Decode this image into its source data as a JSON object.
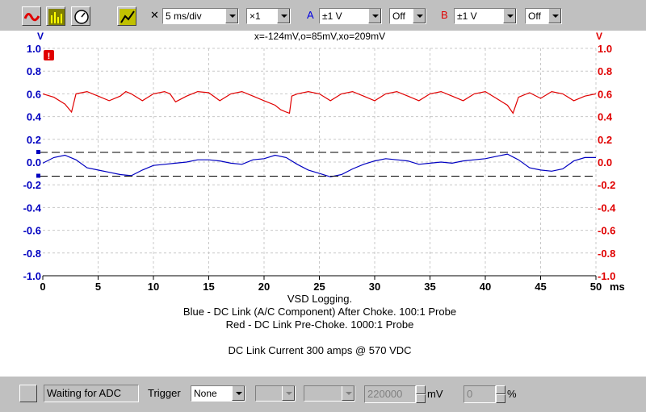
{
  "toolbar": {
    "timebase": "5 ms/div",
    "multiplier": "×1",
    "channel_a_label": "A",
    "channel_a_range": "±1 V",
    "channel_a_coupling": "Off",
    "channel_b_label": "B",
    "channel_b_range": "±1 V",
    "channel_b_coupling": "Off",
    "icons": [
      "scope-icon",
      "spectrum-icon",
      "meter-icon",
      "signal-generator-icon",
      "close-icon"
    ]
  },
  "plot": {
    "left_unit": "V",
    "right_unit": "V",
    "x_unit": "ms",
    "readout": "x=-124mV,o=85mV,xo=209mV",
    "warning_icon": "warning-icon",
    "caption_lines": [
      "VSD Logging.",
      "Blue - DC Link (A/C Component) After Choke. 100:1 Probe",
      "Red - DC Link Pre-Choke. 1000:1 Probe",
      "",
      "DC Link Current 300 amps @ 570 VDC"
    ]
  },
  "chart_data": {
    "type": "line",
    "x_ticks": [
      "0",
      "5",
      "10",
      "15",
      "20",
      "25",
      "30",
      "35",
      "40",
      "45",
      "50"
    ],
    "y_ticks_left": [
      "1.0",
      "0.8",
      "0.6",
      "0.4",
      "0.2",
      "0.0",
      "-0.2",
      "-0.4",
      "-0.6",
      "-0.8",
      "-1.0"
    ],
    "y_ticks_right": [
      "1.0",
      "0.8",
      "0.6",
      "0.4",
      "0.2",
      "0.0",
      "-0.2",
      "-0.4",
      "-0.6",
      "-0.8",
      "-1.0"
    ],
    "xlim": [
      0,
      50
    ],
    "ylim": [
      -1.0,
      1.0
    ],
    "grid": true,
    "colors": {
      "blue": "#0000c0",
      "red": "#e00000"
    },
    "cursors": [
      0.085,
      -0.124
    ],
    "series": [
      {
        "color": "#e00000",
        "x": [
          0,
          1,
          2,
          2.6,
          3,
          3.5,
          4,
          5,
          6,
          7,
          7.5,
          8,
          9,
          10,
          11,
          11.5,
          12,
          13,
          14,
          15,
          16,
          17,
          18,
          19,
          20,
          21,
          21.5,
          22,
          22.3,
          22.5,
          23,
          24,
          25,
          26,
          27,
          28,
          29,
          30,
          31,
          32,
          33,
          34,
          35,
          36,
          37,
          38,
          39,
          40,
          41,
          42,
          42.5,
          43,
          44,
          45,
          46,
          47,
          48,
          49,
          50
        ],
        "y": [
          0.6,
          0.57,
          0.51,
          0.44,
          0.6,
          0.61,
          0.62,
          0.58,
          0.54,
          0.58,
          0.62,
          0.6,
          0.54,
          0.6,
          0.62,
          0.6,
          0.53,
          0.58,
          0.62,
          0.61,
          0.54,
          0.6,
          0.62,
          0.58,
          0.54,
          0.5,
          0.46,
          0.44,
          0.43,
          0.58,
          0.6,
          0.62,
          0.6,
          0.54,
          0.6,
          0.62,
          0.58,
          0.54,
          0.6,
          0.62,
          0.58,
          0.54,
          0.6,
          0.62,
          0.58,
          0.54,
          0.6,
          0.62,
          0.56,
          0.5,
          0.43,
          0.57,
          0.61,
          0.56,
          0.62,
          0.6,
          0.54,
          0.58,
          0.6
        ]
      },
      {
        "color": "#0000c0",
        "x": [
          0,
          1,
          2,
          3,
          4,
          5,
          6,
          7,
          8,
          9,
          10,
          11,
          12,
          13,
          14,
          15,
          16,
          17,
          18,
          19,
          20,
          21,
          22,
          23,
          24,
          25,
          26,
          27,
          28,
          29,
          30,
          31,
          32,
          33,
          34,
          35,
          36,
          37,
          38,
          39,
          40,
          41,
          42,
          43,
          44,
          45,
          46,
          47,
          48,
          49,
          50
        ],
        "y": [
          -0.01,
          0.04,
          0.06,
          0.02,
          -0.05,
          -0.07,
          -0.09,
          -0.11,
          -0.12,
          -0.07,
          -0.03,
          -0.02,
          -0.01,
          0.0,
          0.02,
          0.02,
          0.01,
          -0.01,
          -0.02,
          0.02,
          0.03,
          0.06,
          0.04,
          -0.02,
          -0.07,
          -0.1,
          -0.13,
          -0.11,
          -0.06,
          -0.02,
          0.01,
          0.03,
          0.02,
          0.01,
          -0.02,
          -0.01,
          0.0,
          -0.01,
          0.01,
          0.02,
          0.03,
          0.05,
          0.07,
          0.02,
          -0.05,
          -0.07,
          -0.08,
          -0.06,
          0.01,
          0.04,
          0.04
        ]
      }
    ]
  },
  "status": {
    "state_text": "Waiting for ADC",
    "trigger_label": "Trigger",
    "trigger_mode": "None",
    "threshold_value": "220000",
    "threshold_unit": "mV",
    "pretrigger_value": "0",
    "pretrigger_unit": "%"
  }
}
